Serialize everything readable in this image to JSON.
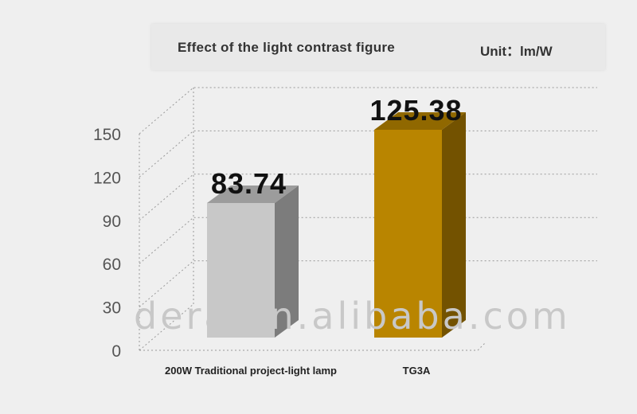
{
  "chart_data": {
    "type": "bar",
    "title": "Effect of the light contrast figure",
    "unit": "Unit：lm/W",
    "categories": [
      "200W Traditional project-light lamp",
      "TG3A"
    ],
    "values": [
      83.74,
      125.38
    ],
    "value_labels": [
      "83.74",
      "125.38"
    ],
    "colors": [
      "#c8c8c8",
      "#b98500"
    ],
    "ylim": [
      0,
      150
    ],
    "yticks": [
      "0",
      "30",
      "60",
      "90",
      "120",
      "150"
    ],
    "grid": true,
    "style": "3d"
  },
  "watermark": "dera.en.alibaba.com"
}
